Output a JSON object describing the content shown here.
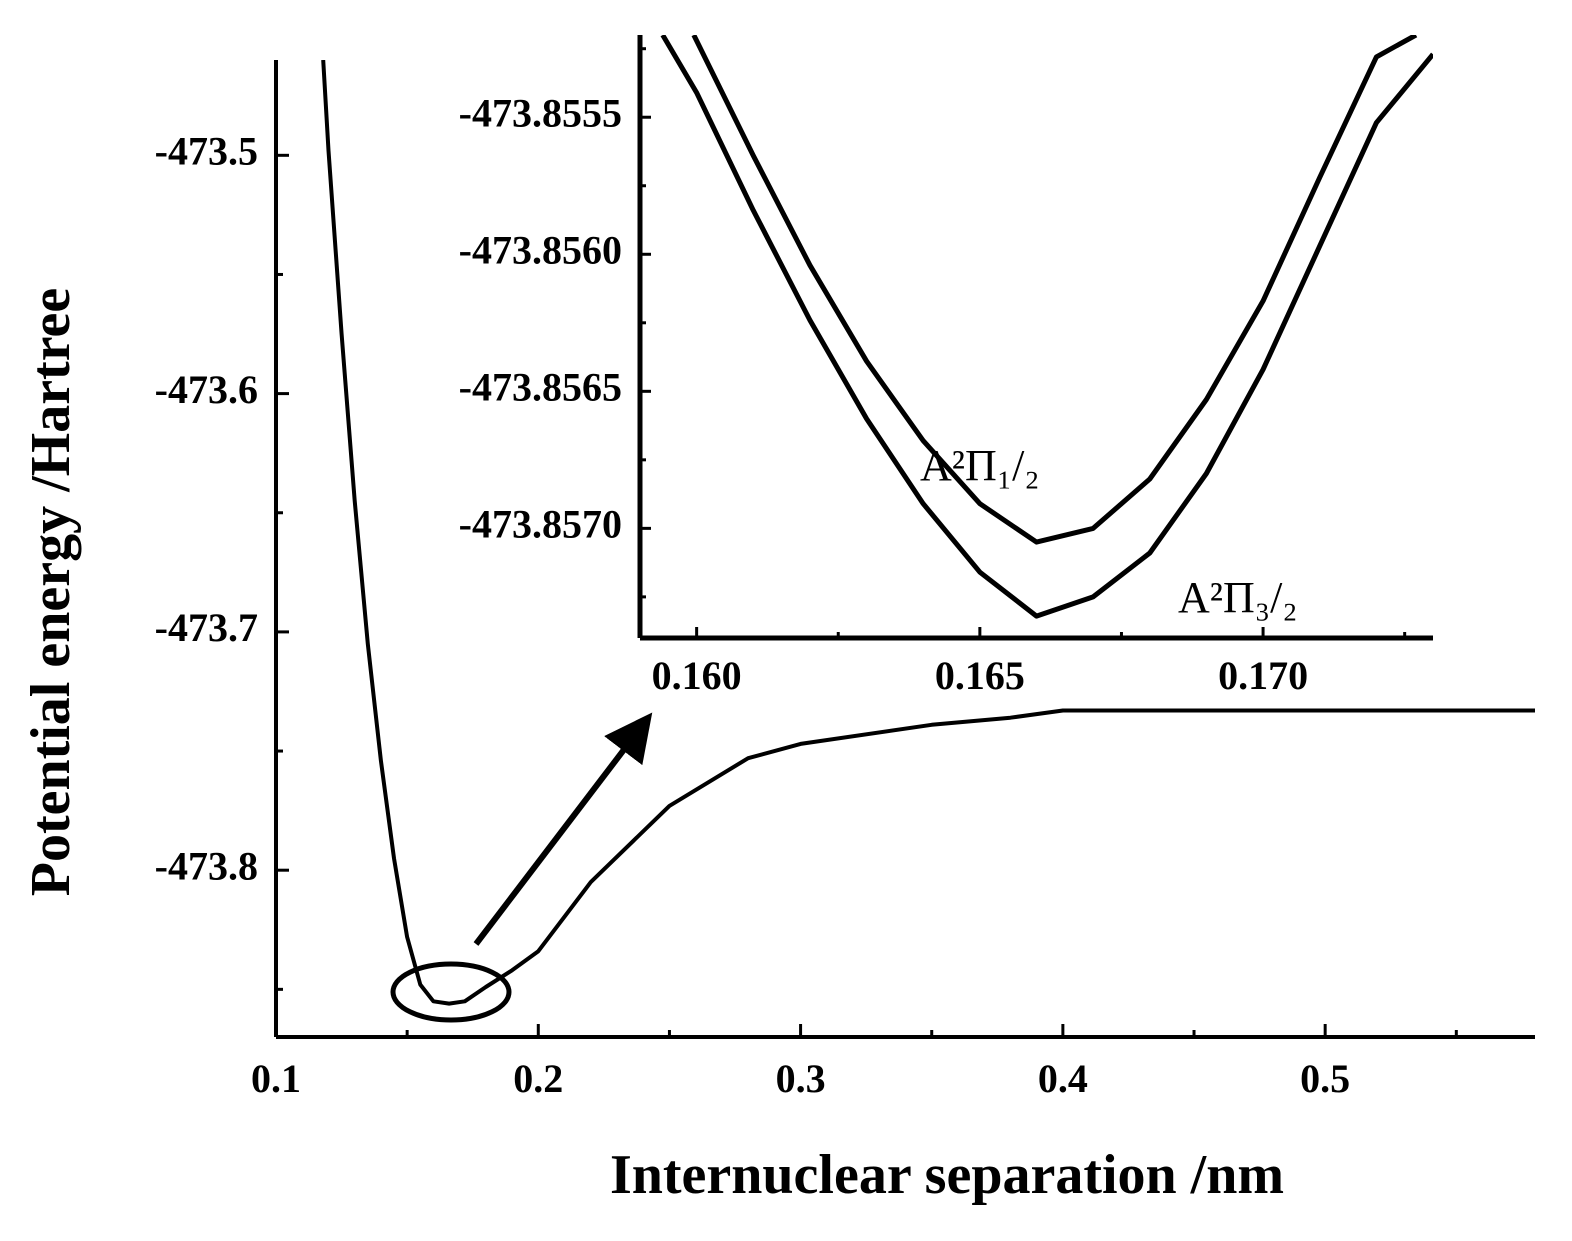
{
  "chart_data": [
    {
      "type": "line",
      "xlabel": "Internuclear separation /nm",
      "ylabel": "Potential energy /Hartree",
      "xlim": [
        0.1,
        0.58
      ],
      "ylim": [
        -473.87,
        -473.46
      ],
      "xticks": [
        0.1,
        0.2,
        0.3,
        0.4,
        0.5
      ],
      "xticks_minor": [
        0.15,
        0.25,
        0.35,
        0.45,
        0.55
      ],
      "yticks": [
        -473.5,
        -473.6,
        -473.7,
        -473.8
      ],
      "yticks_minor": [
        -473.55,
        -473.65,
        -473.75,
        -473.85
      ],
      "series": [
        {
          "color": "#000000",
          "x": [
            0.118,
            0.12,
            0.125,
            0.13,
            0.135,
            0.14,
            0.145,
            0.15,
            0.155,
            0.16,
            0.166,
            0.172,
            0.18,
            0.19,
            0.2,
            0.22,
            0.25,
            0.28,
            0.3,
            0.35,
            0.38,
            0.4,
            0.5,
            0.58
          ],
          "values": [
            -473.46,
            -473.498,
            -473.575,
            -473.645,
            -473.705,
            -473.754,
            -473.795,
            -473.828,
            -473.848,
            -473.855,
            -473.856,
            -473.855,
            -473.849,
            -473.842,
            -473.834,
            -473.805,
            -473.773,
            -473.753,
            -473.747,
            -473.739,
            -473.736,
            -473.733,
            -473.733,
            -473.733
          ]
        }
      ]
    },
    {
      "type": "line",
      "xlim": [
        0.159,
        0.173
      ],
      "ylim": [
        -473.8574,
        -473.8552
      ],
      "xticks": [
        {
          "value": 0.16,
          "label": "0.160"
        },
        0.165,
        {
          "value": 0.17,
          "label": "0.170"
        }
      ],
      "xticks_minor": [
        0.1625,
        0.1675,
        0.1725
      ],
      "yticks": [
        -473.8555,
        {
          "value": -473.856,
          "label": "-473.8560"
        },
        -473.8565,
        {
          "value": -473.857,
          "label": "-473.8570"
        }
      ],
      "yticks_minor": [
        -473.85525,
        -473.85575,
        -473.85625,
        -473.85675,
        -473.85725
      ],
      "series": [
        {
          "name": "A²Π₁/₂",
          "color": "#000000",
          "x": [
            0.15995,
            0.161,
            0.162,
            0.163,
            0.164,
            0.165,
            0.166,
            0.167,
            0.168,
            0.169,
            0.17,
            0.171,
            0.172,
            0.1727
          ],
          "values": [
            -473.8552,
            -473.85564,
            -473.85604,
            -473.85639,
            -473.85668,
            -473.85691,
            -473.85705,
            -473.857,
            -473.85682,
            -473.85653,
            -473.85617,
            -473.85572,
            -473.85528,
            -473.8552
          ]
        },
        {
          "name": "A²Π₃/₂",
          "color": "#000000",
          "x": [
            0.1594,
            0.16,
            0.161,
            0.162,
            0.163,
            0.164,
            0.165,
            0.166,
            0.167,
            0.168,
            0.169,
            0.17,
            0.171,
            0.172,
            0.173
          ],
          "values": [
            -473.8552,
            -473.85541,
            -473.85584,
            -473.85624,
            -473.8566,
            -473.85691,
            -473.85716,
            -473.85732,
            -473.85725,
            -473.85709,
            -473.8568,
            -473.85642,
            -473.85597,
            -473.85552,
            -473.85527
          ]
        }
      ]
    }
  ]
}
